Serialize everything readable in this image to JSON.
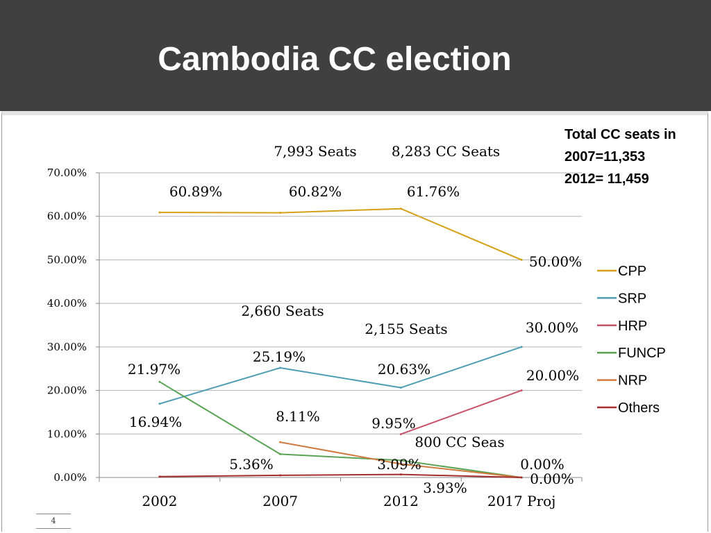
{
  "title": "Cambodia CC election",
  "page_number": "4",
  "note_lines": [
    "Total CC seats in",
    "2007=11,353",
    "2012= 11,459"
  ],
  "chart_data": {
    "type": "line",
    "categories": [
      "2002",
      "2007",
      "2012",
      "2017 Proj"
    ],
    "ylim": [
      0,
      0.7
    ],
    "yticks": [
      "0.00%",
      "10.00%",
      "20.00%",
      "30.00%",
      "40.00%",
      "50.00%",
      "60.00%",
      "70.00%"
    ],
    "grid": true,
    "legend_position": "right",
    "series": [
      {
        "name": "CPP",
        "color": "#d4a017",
        "values": [
          0.6089,
          0.6082,
          0.6176,
          0.5
        ]
      },
      {
        "name": "SRP",
        "color": "#4f9db3",
        "values": [
          0.1694,
          0.2519,
          0.2063,
          0.3
        ]
      },
      {
        "name": "HRP",
        "color": "#c8546a",
        "values": [
          null,
          null,
          0.0995,
          0.2
        ]
      },
      {
        "name": "FUNCP",
        "color": "#5aa355",
        "values": [
          0.2197,
          0.0536,
          0.0393,
          0.0
        ]
      },
      {
        "name": "NRP",
        "color": "#cf7a3f",
        "values": [
          null,
          0.0811,
          0.0309,
          0.0
        ]
      },
      {
        "name": "Others",
        "color": "#a32d2d",
        "values": [
          0.002,
          0.005,
          0.007,
          0.0
        ]
      }
    ],
    "annotations": [
      {
        "text": "60.89%",
        "category": "2002",
        "value": 0.6089
      },
      {
        "text": "60.82%",
        "category": "2007",
        "value": 0.6082
      },
      {
        "text": "61.76%",
        "category": "2012",
        "value": 0.6176
      },
      {
        "text": "50.00%",
        "category": "2017 Proj",
        "value": 0.5
      },
      {
        "text": "7,993 Seats",
        "category": "2007",
        "value": 0.6082
      },
      {
        "text": "8,283 CC Seats",
        "category": "2012",
        "value": 0.6176
      },
      {
        "text": "2,660  Seats",
        "category": "2007",
        "value": 0.2519
      },
      {
        "text": "2,155  Seats",
        "category": "2012",
        "value": 0.2063
      },
      {
        "text": "30.00%",
        "category": "2017 Proj",
        "value": 0.3
      },
      {
        "text": "25.19%",
        "category": "2007",
        "value": 0.2519
      },
      {
        "text": "20.63%",
        "category": "2012",
        "value": 0.2063
      },
      {
        "text": "21.97%",
        "category": "2002",
        "value": 0.2197
      },
      {
        "text": "20.00%",
        "category": "2017 Proj",
        "value": 0.2
      },
      {
        "text": "16.94%",
        "category": "2002",
        "value": 0.1694
      },
      {
        "text": "8.11%",
        "category": "2007",
        "value": 0.0811
      },
      {
        "text": "9.95%",
        "category": "2012",
        "value": 0.0995
      },
      {
        "text": "800 CC Seas",
        "category": "2012",
        "value": 0.0995
      },
      {
        "text": "5.36%",
        "category": "2007",
        "value": 0.0536
      },
      {
        "text": "3.09%",
        "category": "2012",
        "value": 0.0309
      },
      {
        "text": "3.93%",
        "category": "2012",
        "value": 0.0393
      },
      {
        "text": "0.00%",
        "category": "2017 Proj",
        "value": 0.0
      },
      {
        "text": "0.00%",
        "category": "2017 Proj",
        "value": 0.0
      }
    ]
  }
}
